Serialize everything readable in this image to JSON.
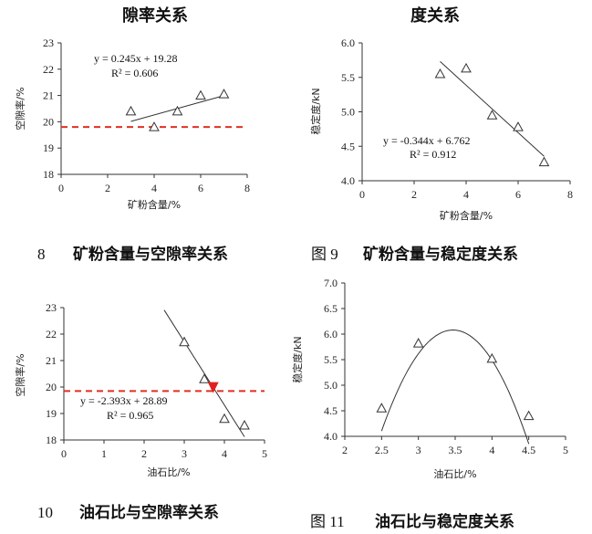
{
  "chart_data": [
    {
      "type": "scatter",
      "title": "隙率关系",
      "caption_num": "8",
      "caption_text": "矿粉含量与空隙率关系",
      "xlabel": "矿粉含量/%",
      "ylabel": "空隙率/%",
      "xlim": [
        0,
        8
      ],
      "ylim": [
        18,
        23
      ],
      "xticks": [
        "0",
        "2",
        "4",
        "6",
        "8"
      ],
      "yticks": [
        "18",
        "19",
        "20",
        "21",
        "22",
        "23"
      ],
      "points": [
        [
          3,
          20.4
        ],
        [
          4,
          19.8
        ],
        [
          5,
          20.4
        ],
        [
          6,
          21.0
        ],
        [
          7,
          21.05
        ]
      ],
      "trend": {
        "type": "linear",
        "slope": 0.245,
        "intercept": 19.28,
        "x_range": [
          3,
          7
        ]
      },
      "equation": "y = 0.245x + 19.28",
      "r2": "R² = 0.606",
      "ref_line": {
        "y": 19.8,
        "color": "#e03020"
      }
    },
    {
      "type": "scatter",
      "title": "度关系",
      "caption_num": "图 9",
      "caption_text": "矿粉含量与稳定度关系",
      "xlabel": "矿粉含量/%",
      "ylabel": "稳定度/kN",
      "xlim": [
        0,
        8
      ],
      "ylim": [
        4.0,
        6.0
      ],
      "xticks": [
        "0",
        "2",
        "4",
        "6",
        "8"
      ],
      "yticks": [
        "4.0",
        "4.5",
        "5.0",
        "5.5",
        "6.0"
      ],
      "points": [
        [
          3,
          5.55
        ],
        [
          4,
          5.63
        ],
        [
          5,
          4.95
        ],
        [
          6,
          4.78
        ],
        [
          7,
          4.27
        ]
      ],
      "trend": {
        "type": "linear",
        "slope": -0.344,
        "intercept": 6.762,
        "x_range": [
          3,
          7
        ]
      },
      "equation": "y = -0.344x + 6.762",
      "r2": "R² = 0.912"
    },
    {
      "type": "scatter",
      "caption_num": "10",
      "caption_text": "油石比与空隙率关系",
      "xlabel": "油石比/%",
      "ylabel": "空隙率/%",
      "xlim": [
        0,
        5
      ],
      "ylim": [
        18,
        23
      ],
      "xticks": [
        "0",
        "1",
        "2",
        "3",
        "4",
        "5"
      ],
      "yticks": [
        "18",
        "19",
        "20",
        "21",
        "22",
        "23"
      ],
      "points": [
        [
          3.0,
          21.7
        ],
        [
          3.5,
          20.3
        ],
        [
          4.0,
          18.8
        ],
        [
          4.5,
          18.55
        ]
      ],
      "trend": {
        "type": "linear",
        "slope": -2.393,
        "intercept": 28.89,
        "x_range": [
          2.5,
          4.5
        ]
      },
      "equation": "y = -2.393x + 28.89",
      "r2": "R² = 0.965",
      "ref_line": {
        "y": 19.85,
        "color": "#e03020"
      },
      "marker": {
        "x": 3.72,
        "y": 19.98,
        "color": "#e02020"
      }
    },
    {
      "type": "scatter",
      "caption_num": "图 11",
      "caption_text": "油石比与稳定度关系",
      "xlabel": "油石比/%",
      "ylabel": "稳定度/kN",
      "xlim": [
        2,
        5
      ],
      "ylim": [
        4.0,
        7.0
      ],
      "xticks": [
        "2",
        "2.5",
        "3",
        "3.5",
        "4",
        "4.5",
        "5"
      ],
      "yticks": [
        "4.0",
        "4.5",
        "5.0",
        "5.5",
        "6.0",
        "6.5",
        "7.0"
      ],
      "points": [
        [
          2.5,
          4.55
        ],
        [
          3.0,
          5.82
        ],
        [
          4.0,
          5.52
        ],
        [
          4.5,
          4.4
        ]
      ],
      "trend": {
        "type": "poly2",
        "vertex": [
          3.47,
          6.08
        ],
        "a": -2.1,
        "x_range": [
          2.5,
          4.5
        ]
      }
    }
  ]
}
